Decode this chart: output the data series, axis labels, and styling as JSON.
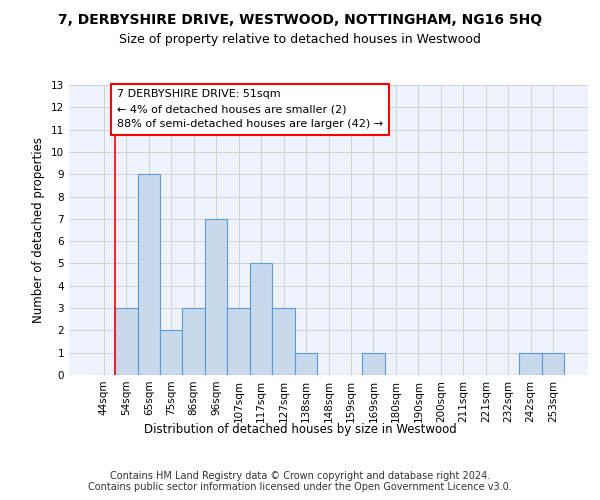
{
  "title": "7, DERBYSHIRE DRIVE, WESTWOOD, NOTTINGHAM, NG16 5HQ",
  "subtitle": "Size of property relative to detached houses in Westwood",
  "xlabel": "Distribution of detached houses by size in Westwood",
  "ylabel": "Number of detached properties",
  "categories": [
    "44sqm",
    "54sqm",
    "65sqm",
    "75sqm",
    "86sqm",
    "96sqm",
    "107sqm",
    "117sqm",
    "127sqm",
    "138sqm",
    "148sqm",
    "159sqm",
    "169sqm",
    "180sqm",
    "190sqm",
    "200sqm",
    "211sqm",
    "221sqm",
    "232sqm",
    "242sqm",
    "253sqm"
  ],
  "values": [
    0,
    3,
    9,
    2,
    3,
    7,
    3,
    5,
    3,
    1,
    0,
    0,
    1,
    0,
    0,
    0,
    0,
    0,
    0,
    1,
    1
  ],
  "bar_color": "#c9d9ed",
  "bar_edge_color": "#5b9bd5",
  "grid_color": "#d0d0d0",
  "background_color": "#eef3fb",
  "annotation_text": "7 DERBYSHIRE DRIVE: 51sqm\n← 4% of detached houses are smaller (2)\n88% of semi-detached houses are larger (42) →",
  "ylim": [
    0,
    13
  ],
  "yticks": [
    0,
    1,
    2,
    3,
    4,
    5,
    6,
    7,
    8,
    9,
    10,
    11,
    12,
    13
  ],
  "footer_line1": "Contains HM Land Registry data © Crown copyright and database right 2024.",
  "footer_line2": "Contains public sector information licensed under the Open Government Licence v3.0.",
  "title_fontsize": 10,
  "subtitle_fontsize": 9,
  "annotation_fontsize": 8,
  "axis_label_fontsize": 8.5,
  "tick_fontsize": 7.5,
  "footer_fontsize": 7
}
